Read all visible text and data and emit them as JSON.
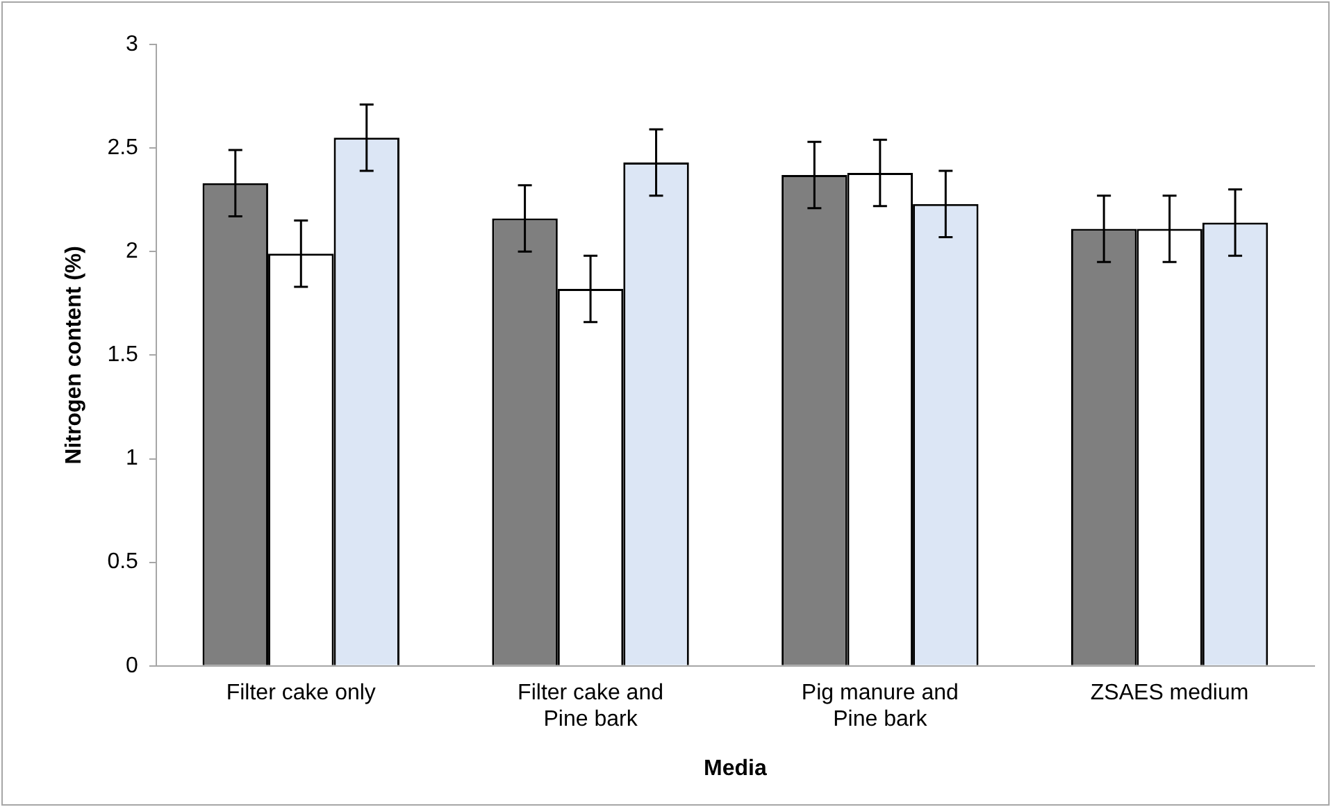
{
  "chart_data": {
    "type": "bar",
    "xlabel": "Media",
    "ylabel": "Nitrogen content (%)",
    "categories": [
      "Filter cake only",
      "Filter cake and Pine bark",
      "Pig manure and Pine bark",
      "ZSAES medium"
    ],
    "series": [
      {
        "color": "#7f7f7f",
        "values": [
          2.33,
          2.16,
          2.37,
          2.11
        ],
        "errors": [
          0.16,
          0.16,
          0.16,
          0.16
        ]
      },
      {
        "color": "#ffffff",
        "values": [
          1.99,
          1.82,
          2.38,
          2.11
        ],
        "errors": [
          0.16,
          0.16,
          0.16,
          0.16
        ]
      },
      {
        "color": "#dce6f5",
        "values": [
          2.55,
          2.43,
          2.23,
          2.14
        ],
        "errors": [
          0.16,
          0.16,
          0.16,
          0.16
        ]
      }
    ],
    "ylim": [
      0,
      3
    ],
    "yticks": [
      0,
      0.5,
      1,
      1.5,
      2,
      2.5,
      3
    ],
    "grid": false,
    "legend": false
  }
}
